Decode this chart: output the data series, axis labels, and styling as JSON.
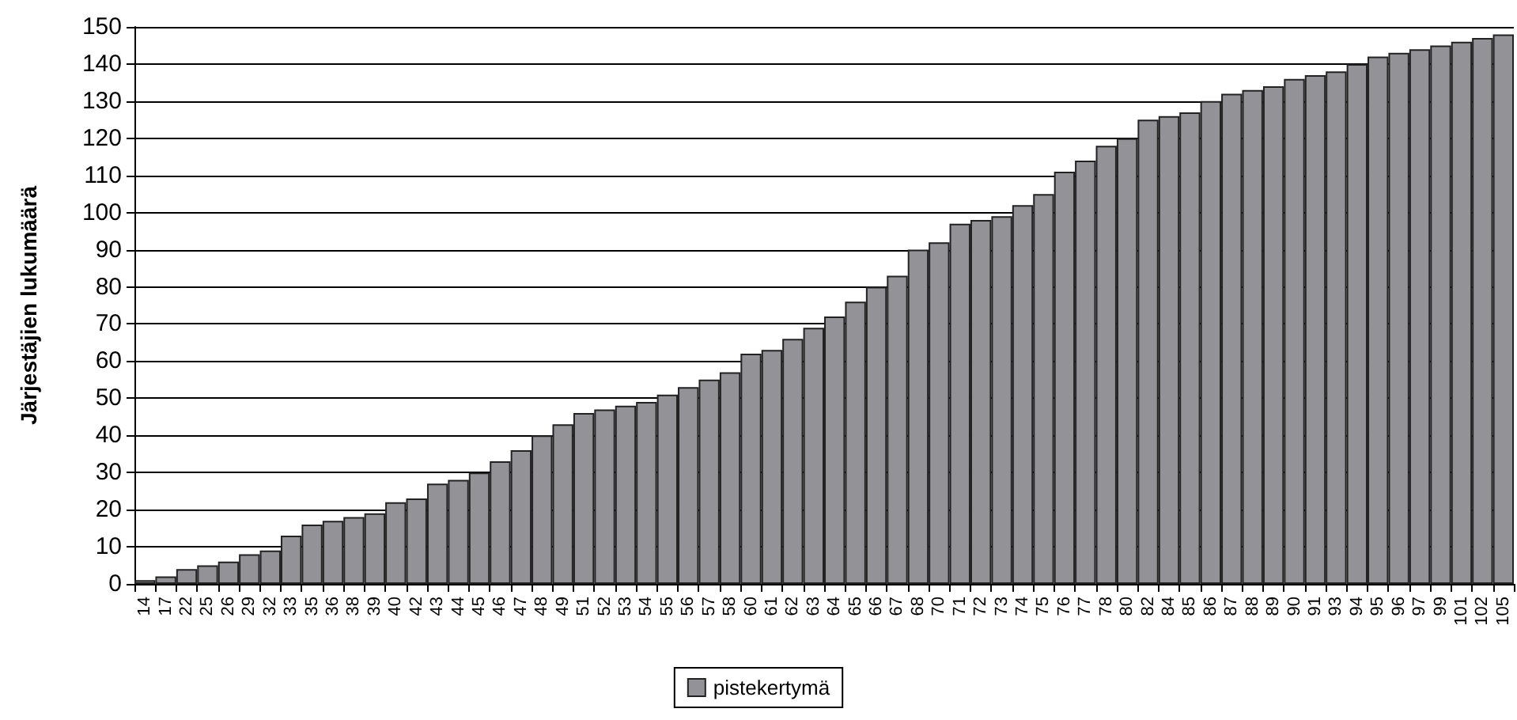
{
  "chart_data": {
    "type": "bar",
    "ylabel": "Järjestäjien lukumäärä",
    "categories": [
      "14",
      "17",
      "22",
      "25",
      "26",
      "29",
      "32",
      "33",
      "35",
      "36",
      "38",
      "39",
      "40",
      "42",
      "43",
      "44",
      "45",
      "46",
      "47",
      "48",
      "49",
      "51",
      "52",
      "53",
      "54",
      "55",
      "56",
      "57",
      "58",
      "60",
      "61",
      "62",
      "63",
      "64",
      "65",
      "66",
      "67",
      "68",
      "70",
      "71",
      "72",
      "73",
      "74",
      "75",
      "76",
      "77",
      "78",
      "80",
      "82",
      "84",
      "85",
      "86",
      "87",
      "88",
      "89",
      "90",
      "91",
      "93",
      "94",
      "95",
      "96",
      "97",
      "99",
      "101",
      "102",
      "105"
    ],
    "series": [
      {
        "name": "pistekertymä",
        "color": "#929297",
        "values": [
          1,
          2,
          4,
          5,
          6,
          8,
          9,
          13,
          16,
          17,
          18,
          19,
          22,
          23,
          27,
          28,
          30,
          33,
          36,
          40,
          43,
          46,
          47,
          48,
          49,
          51,
          53,
          55,
          57,
          62,
          63,
          66,
          69,
          72,
          76,
          80,
          83,
          90,
          92,
          97,
          98,
          99,
          102,
          105,
          111,
          114,
          118,
          120,
          125,
          126,
          127,
          130,
          132,
          133,
          134,
          136,
          137,
          138,
          140,
          142,
          143,
          144,
          145,
          146,
          147,
          148
        ]
      }
    ],
    "ylim": [
      0,
      150
    ],
    "yticks": [
      0,
      10,
      20,
      30,
      40,
      50,
      60,
      70,
      80,
      90,
      100,
      110,
      120,
      130,
      140,
      150
    ],
    "grid": "y",
    "legend": "bottom"
  }
}
